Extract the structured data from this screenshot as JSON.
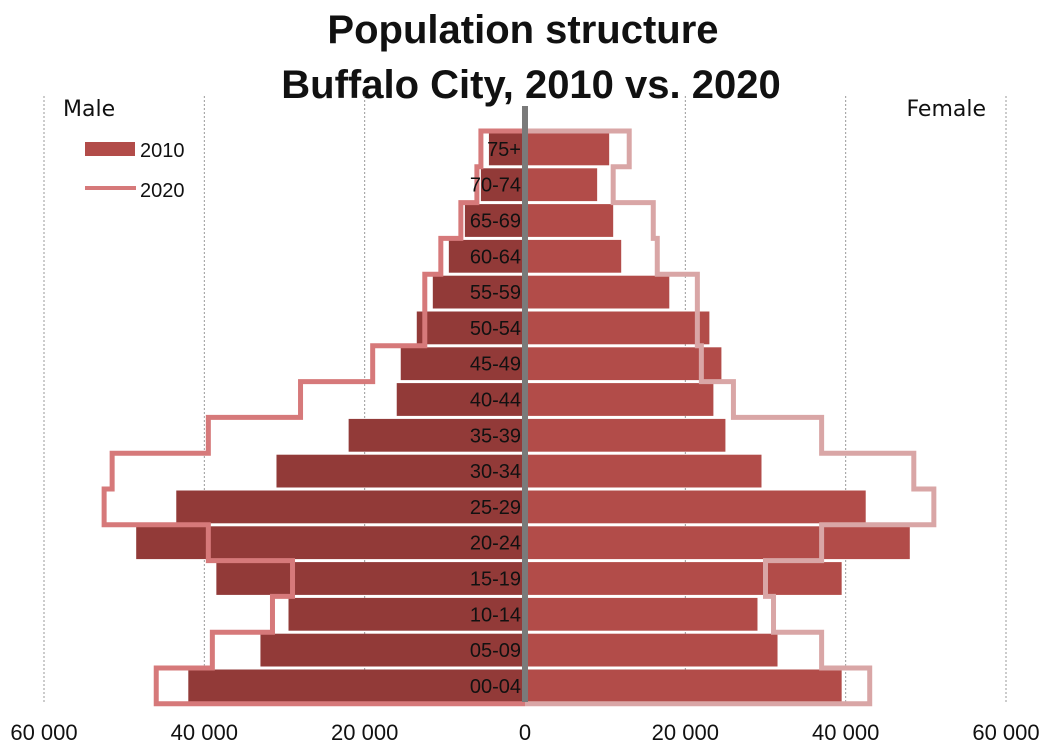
{
  "chart_data": {
    "type": "bar",
    "title": "Population structure",
    "subtitle": "Buffalo City, 2010 vs. 2020",
    "left_label": "Male",
    "right_label": "Female",
    "categories": [
      "00-04",
      "05-09",
      "10-14",
      "15-19",
      "20-24",
      "25-29",
      "30-34",
      "35-39",
      "40-44",
      "45-49",
      "50-54",
      "55-59",
      "60-64",
      "65-69",
      "70-74",
      "75+"
    ],
    "xlim": [
      -60000,
      60000
    ],
    "x_ticks": [
      {
        "value": -60000,
        "label": "60 000"
      },
      {
        "value": -40000,
        "label": "40 000"
      },
      {
        "value": -20000,
        "label": "20 000"
      },
      {
        "value": 0,
        "label": "0"
      },
      {
        "value": 20000,
        "label": "20 000"
      },
      {
        "value": 40000,
        "label": "40 000"
      },
      {
        "value": 60000,
        "label": "60 000"
      }
    ],
    "grid": true,
    "legend_position": "top-left",
    "series": [
      {
        "name": "2010",
        "style": "filled",
        "male": [
          42000,
          33000,
          29500,
          38500,
          48500,
          43500,
          31000,
          22000,
          16000,
          15500,
          13500,
          11500,
          9500,
          7500,
          5500,
          4500
        ],
        "female": [
          39500,
          31500,
          29000,
          39500,
          48000,
          42500,
          29500,
          25000,
          23500,
          24500,
          23000,
          18000,
          12000,
          11000,
          9000,
          10500
        ]
      },
      {
        "name": "2020",
        "style": "outline",
        "male": [
          46000,
          39000,
          31500,
          29000,
          39500,
          52500,
          51500,
          39500,
          28000,
          19000,
          12500,
          12500,
          10500,
          8000,
          6000,
          5500
        ],
        "female": [
          43000,
          37000,
          31000,
          30000,
          37000,
          51000,
          48500,
          37000,
          26000,
          22000,
          21500,
          21500,
          16500,
          16000,
          11000,
          13000
        ]
      }
    ],
    "colors": {
      "male_2010": "#923a38",
      "female_2010": "#b24c49",
      "male_2020": "#d6797a",
      "female_2020": "#d9a6a6",
      "axis": "#7a7a7a",
      "grid": "#9a9a9a"
    }
  }
}
